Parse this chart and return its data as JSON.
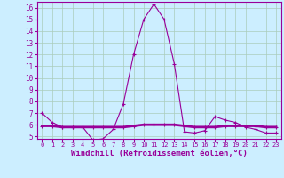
{
  "xlabel": "Windchill (Refroidissement éolien,°C)",
  "ylabel": "",
  "background_color": "#cceeff",
  "grid_color": "#aaccbb",
  "line_color": "#990099",
  "xlim": [
    -0.5,
    23.5
  ],
  "ylim": [
    4.8,
    16.5
  ],
  "yticks": [
    5,
    6,
    7,
    8,
    9,
    10,
    11,
    12,
    13,
    14,
    15,
    16
  ],
  "xticks": [
    0,
    1,
    2,
    3,
    4,
    5,
    6,
    7,
    8,
    9,
    10,
    11,
    12,
    13,
    14,
    15,
    16,
    17,
    18,
    19,
    20,
    21,
    22,
    23
  ],
  "series1_x": [
    0,
    1,
    2,
    3,
    4,
    5,
    6,
    7,
    8,
    9,
    10,
    11,
    12,
    13,
    14,
    15,
    16,
    17,
    18,
    19,
    20,
    21,
    22,
    23
  ],
  "series1_y": [
    7.0,
    6.2,
    5.8,
    5.8,
    5.8,
    4.7,
    4.8,
    5.6,
    7.8,
    12.0,
    15.0,
    16.3,
    15.0,
    11.2,
    5.4,
    5.3,
    5.5,
    6.7,
    6.4,
    6.2,
    5.8,
    5.6,
    5.3,
    5.3
  ],
  "series2_x": [
    0,
    1,
    2,
    3,
    4,
    5,
    6,
    7,
    8,
    9,
    10,
    11,
    12,
    13,
    14,
    15,
    16,
    17,
    18,
    19,
    20,
    21,
    22,
    23
  ],
  "series2_y": [
    5.9,
    5.9,
    5.8,
    5.8,
    5.8,
    5.8,
    5.8,
    5.8,
    5.8,
    5.9,
    6.0,
    6.0,
    6.0,
    6.0,
    5.9,
    5.8,
    5.8,
    5.8,
    5.9,
    5.9,
    5.9,
    5.9,
    5.8,
    5.8
  ],
  "xlabel_fontsize": 6.5,
  "ytick_fontsize": 5.5,
  "xtick_fontsize": 5.0
}
